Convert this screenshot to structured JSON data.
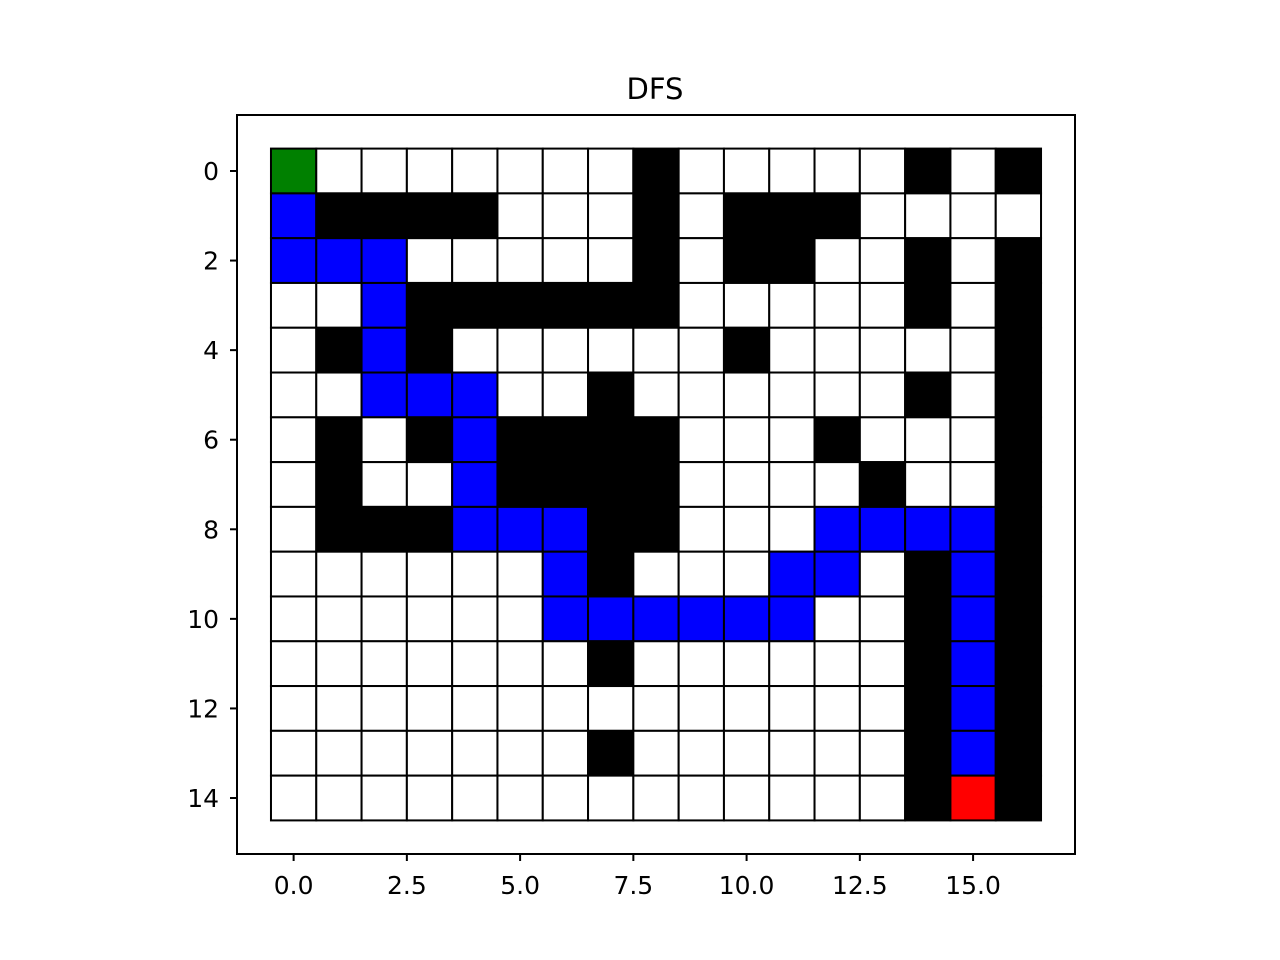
{
  "chart_data": {
    "type": "heatmap",
    "title": "DFS",
    "xlabel": "",
    "ylabel": "",
    "xlim": [
      -1.25,
      17.25
    ],
    "ylim": [
      15.25,
      -1.25
    ],
    "xticks": [
      0.0,
      2.5,
      5.0,
      7.5,
      10.0,
      12.5,
      15.0
    ],
    "xtick_labels": [
      "0.0",
      "2.5",
      "5.0",
      "7.5",
      "10.0",
      "12.5",
      "15.0"
    ],
    "yticks": [
      0,
      2,
      4,
      6,
      8,
      10,
      12,
      14
    ],
    "ytick_labels": [
      "0",
      "2",
      "4",
      "6",
      "8",
      "10",
      "12",
      "14"
    ],
    "cell_legend": {
      "0": "open",
      "1": "wall",
      "2": "path",
      "3": "start",
      "4": "goal"
    },
    "colors": {
      "open": "#ffffff",
      "wall": "#000000",
      "path": "#0000ff",
      "start": "#008000",
      "goal": "#ff0000",
      "gridline": "#000000"
    },
    "grid": [
      [
        3,
        0,
        0,
        0,
        0,
        0,
        0,
        0,
        1,
        0,
        0,
        0,
        0,
        0,
        1,
        0,
        1
      ],
      [
        2,
        1,
        1,
        1,
        1,
        0,
        0,
        0,
        1,
        0,
        1,
        1,
        1,
        0,
        0,
        0,
        0
      ],
      [
        2,
        2,
        2,
        0,
        0,
        0,
        0,
        0,
        1,
        0,
        1,
        1,
        0,
        0,
        1,
        0,
        1
      ],
      [
        0,
        0,
        2,
        1,
        1,
        1,
        1,
        1,
        1,
        0,
        0,
        0,
        0,
        0,
        1,
        0,
        1
      ],
      [
        0,
        1,
        2,
        1,
        0,
        0,
        0,
        0,
        0,
        0,
        1,
        0,
        0,
        0,
        0,
        0,
        1
      ],
      [
        0,
        0,
        2,
        2,
        2,
        0,
        0,
        1,
        0,
        0,
        0,
        0,
        0,
        0,
        1,
        0,
        1
      ],
      [
        0,
        1,
        0,
        1,
        2,
        1,
        1,
        1,
        1,
        0,
        0,
        0,
        1,
        0,
        0,
        0,
        1
      ],
      [
        0,
        1,
        0,
        0,
        2,
        1,
        1,
        1,
        1,
        0,
        0,
        0,
        0,
        1,
        0,
        0,
        1
      ],
      [
        0,
        1,
        1,
        1,
        2,
        2,
        2,
        1,
        1,
        0,
        0,
        0,
        2,
        2,
        2,
        2,
        1
      ],
      [
        0,
        0,
        0,
        0,
        0,
        0,
        2,
        1,
        0,
        0,
        0,
        2,
        2,
        0,
        1,
        2,
        1
      ],
      [
        0,
        0,
        0,
        0,
        0,
        0,
        2,
        2,
        2,
        2,
        2,
        2,
        0,
        0,
        1,
        2,
        1
      ],
      [
        0,
        0,
        0,
        0,
        0,
        0,
        0,
        1,
        0,
        0,
        0,
        0,
        0,
        0,
        1,
        2,
        1
      ],
      [
        0,
        0,
        0,
        0,
        0,
        0,
        0,
        0,
        0,
        0,
        0,
        0,
        0,
        0,
        1,
        2,
        1
      ],
      [
        0,
        0,
        0,
        0,
        0,
        0,
        0,
        1,
        0,
        0,
        0,
        0,
        0,
        0,
        1,
        2,
        1
      ],
      [
        0,
        0,
        0,
        0,
        0,
        0,
        0,
        0,
        0,
        0,
        0,
        0,
        0,
        0,
        1,
        4,
        1
      ]
    ]
  }
}
